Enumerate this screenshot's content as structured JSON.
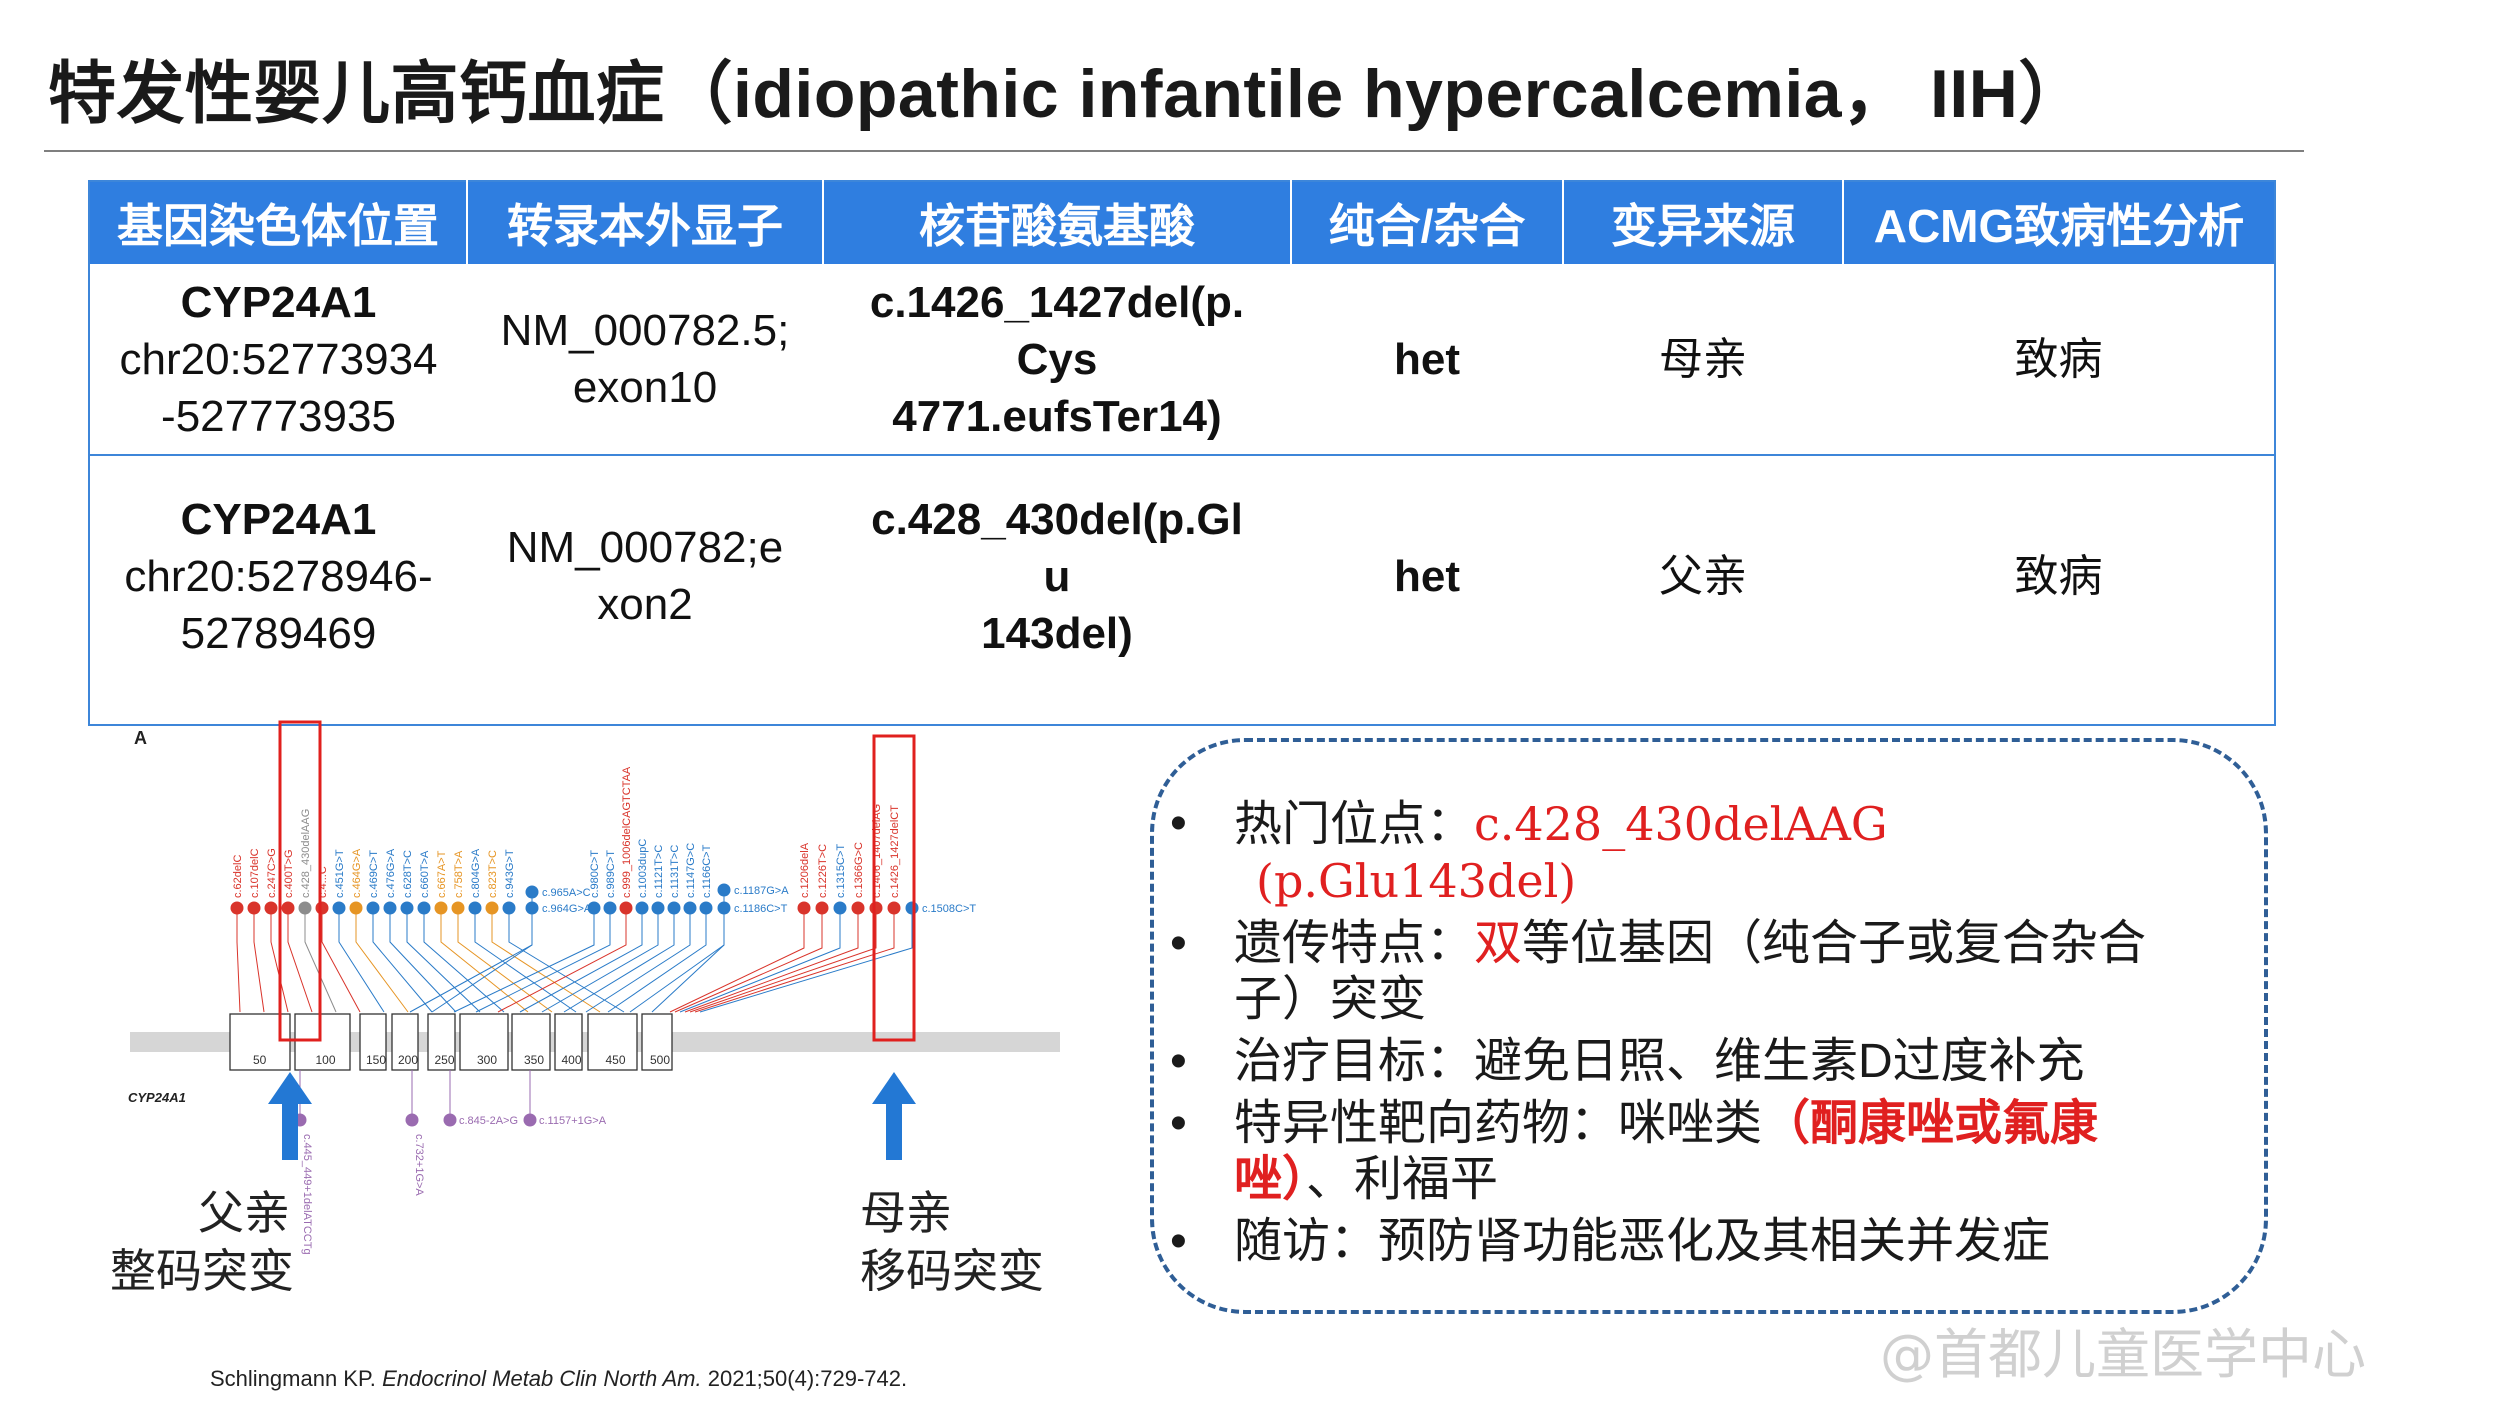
{
  "title": "特发性婴儿高钙血症（idiopathic infantile hypercalcemia， IIH）",
  "table": {
    "headers": [
      "基因染色体位置",
      "转录本外显子",
      "核苷酸氨基酸",
      "纯合/杂合",
      "变异来源",
      "ACMG致病性分析"
    ],
    "rows": [
      {
        "gene": "CYP24A1",
        "loc_line1": "chr20:52773934",
        "loc_line2": "-527773935",
        "transcript_line1": "NM_000782.5;",
        "transcript_line2": "exon10",
        "variant_line1": "c.1426_1427del(p.",
        "variant_line2": "Cys",
        "variant_line3": "4771.eufsTer14)",
        "zygosity": "het",
        "origin": "母亲",
        "acmg": "致病"
      },
      {
        "gene": "CYP24A1",
        "loc_line1": "chr20:5278946-",
        "loc_line2": "52789469",
        "transcript_line1": "NM_000782;e",
        "transcript_line2": "xon2",
        "variant_line1": "c.428_430del(p.Gl",
        "variant_line2": "u",
        "variant_line3": "143del)",
        "zygosity": "het",
        "origin": "父亲",
        "acmg": "致病"
      }
    ]
  },
  "figure": {
    "panel_label": "A",
    "gene_label": "CYP24A1",
    "axis_ticks": [
      "50",
      "100",
      "150",
      "200",
      "250",
      "300",
      "350",
      "400",
      "450",
      "500"
    ],
    "top_variants_left": [
      "c.62delC",
      "c.107delC",
      "c.247C>G",
      "c.400T>G",
      "c.428_430delAAG",
      "c.4...C",
      "c.451G>T",
      "c.464G>A",
      "c.469C>T",
      "c.476G>A",
      "c.628T>C",
      "c.660T>A",
      "c.667A>T",
      "c.758T>A",
      "c.804G>A",
      "c.823T>C",
      "c.943G>T"
    ],
    "top_variants_mid": [
      "c.965A>C",
      "c.964G>A",
      "c.980C>T",
      "c.989C>T",
      "c.999_1006delCAGTCTAA",
      "c.1003dupC",
      "c.1121T>C",
      "c.1131T>C",
      "c.1147G>C",
      "c.1166C>T",
      "c.1187G>A",
      "c.1186C>T"
    ],
    "top_variants_right": [
      "c.1206delA",
      "c.1226T>C",
      "c.1315C>T",
      "c.1366G>C",
      "c.1406_1407delAG",
      "c.1426_1427delCT",
      "c.1508C>T"
    ],
    "bottom_variants": [
      "c.445_449+1delATCCTg",
      "c.732+1G>A",
      "c.845-2A>G",
      "c.1157+1G>A"
    ],
    "caption_left_line1": "父亲",
    "caption_left_line2": "整码突变",
    "caption_right_line1": "母亲",
    "caption_right_line2": "移码突变",
    "colors": {
      "red": "#d9342b",
      "grey": "#8c8c8c",
      "blue": "#2a7bc8",
      "orange": "#e69524",
      "purple": "#9a6bb0",
      "arrow": "#2378d4"
    }
  },
  "citation": {
    "authors": "Schlingmann KP.",
    "journal": "Endocrinol Metab Clin North Am.",
    "details": "2021;50(4):729-742."
  },
  "notes": {
    "bullet": "•",
    "hotspot_label": "热门位点：",
    "hotspot_value_line1": "c.428_430delAAG",
    "hotspot_value_line2": "(p.Glu143del)",
    "genetics_label": "遗传特点：",
    "genetics_highlight": "双",
    "genetics_text_line1": "等位基因（纯合子或复合杂合",
    "genetics_text_line2": "子）突变",
    "treatment": "治疗目标：避免日照、维生素D过度补充",
    "drug_label": "特异性靶向药物：咪唑类",
    "drug_highlight_line1": "（酮康唑或氟康",
    "drug_highlight_line2": "唑）",
    "drug_tail": "、利福平",
    "followup": "随访：预防肾功能恶化及其相关并发症"
  },
  "watermark": "@首都儿童医学中心"
}
